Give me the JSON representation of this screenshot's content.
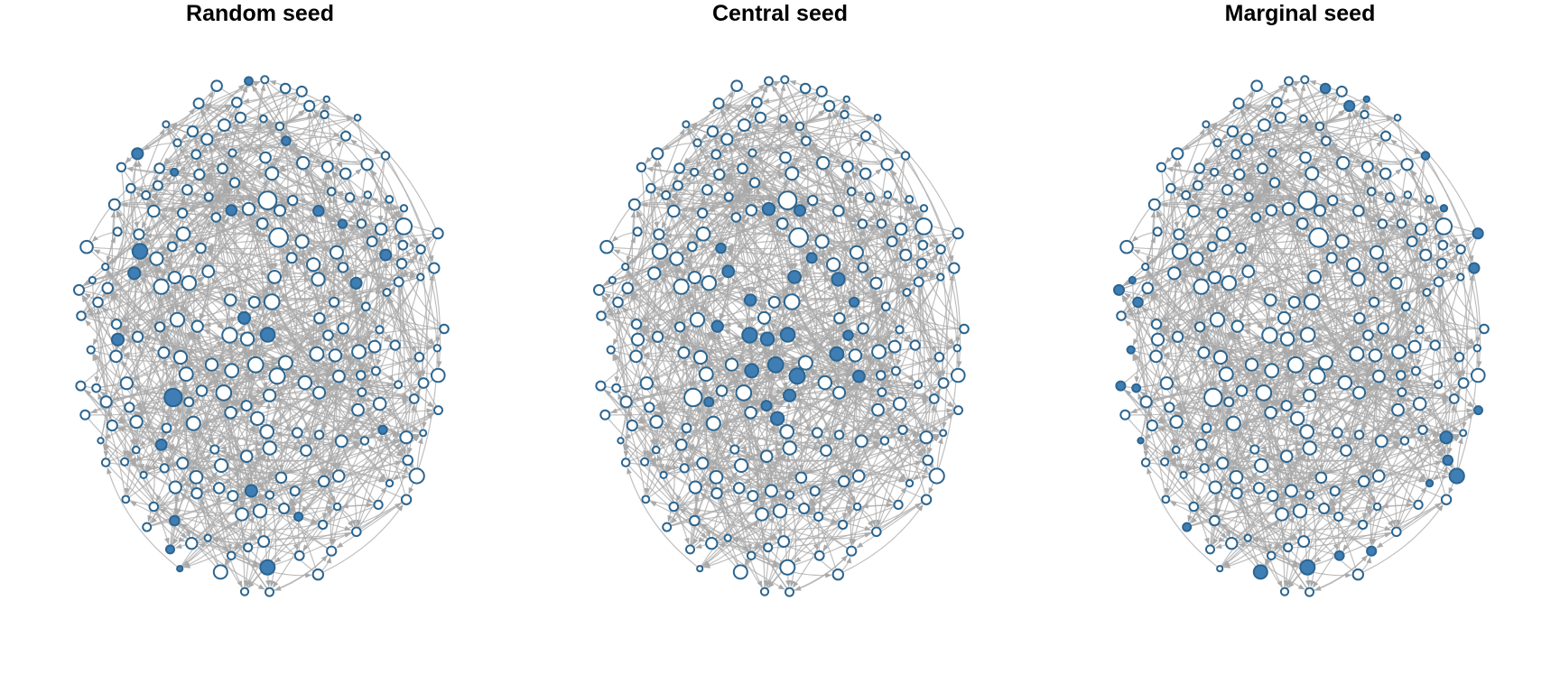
{
  "figure": {
    "panels": [
      {
        "title": "Random seed"
      },
      {
        "title": "Central seed"
      },
      {
        "title": "Marginal seed"
      }
    ]
  },
  "style": {
    "node_fill": "#ffffff",
    "node_stroke": "#2b6590",
    "seed_fill": "#3f7db5",
    "edge_color": "#a9a9a9"
  }
}
